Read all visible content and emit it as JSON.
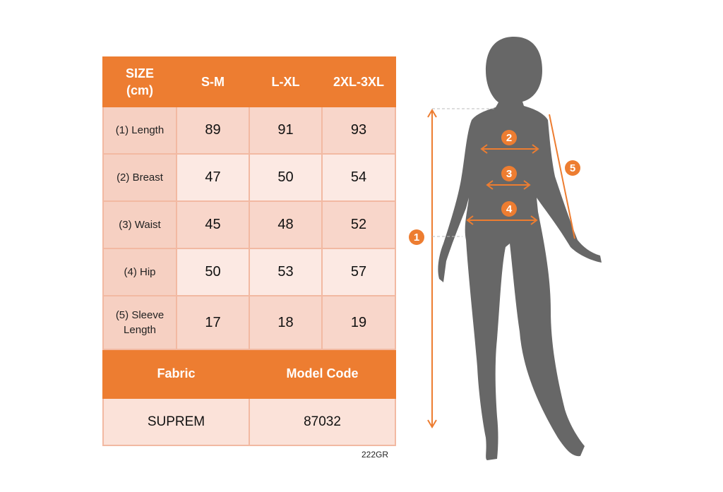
{
  "table": {
    "header": [
      "SIZE (cm)",
      "S-M",
      "L-XL",
      "2XL-3XL"
    ],
    "rows": [
      {
        "label": "(1) Length",
        "values": [
          "89",
          "91",
          "93"
        ]
      },
      {
        "label": "(2) Breast",
        "values": [
          "47",
          "50",
          "54"
        ]
      },
      {
        "label": "(3) Waist",
        "values": [
          "45",
          "48",
          "52"
        ]
      },
      {
        "label": "(4) Hip",
        "values": [
          "50",
          "53",
          "57"
        ]
      },
      {
        "label": "(5) Sleeve Length",
        "values": [
          "17",
          "18",
          "19"
        ]
      }
    ],
    "footer_header": [
      "Fabric",
      "Model Code"
    ],
    "footer_values": [
      "SUPREM",
      "87032"
    ]
  },
  "product_code": "222GR",
  "figure": {
    "markers": [
      "1",
      "2",
      "3",
      "4",
      "5"
    ],
    "accent": "#ED7D31",
    "silhouette": "#666666"
  }
}
